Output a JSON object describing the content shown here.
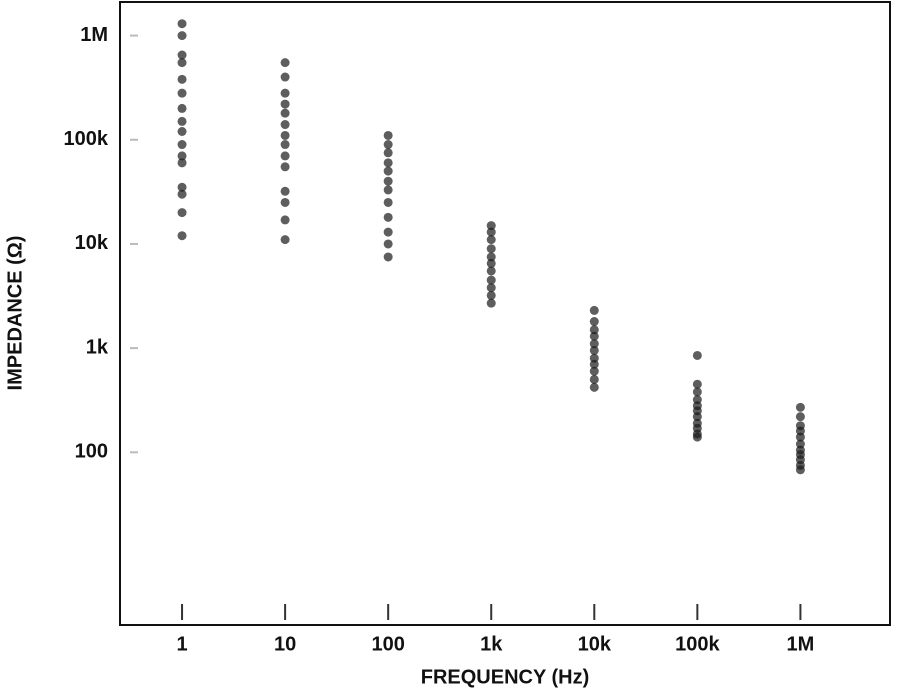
{
  "chart_data": {
    "type": "scatter",
    "x_label": "FREQUENCY (Hz)",
    "y_label": "IMPEDANCE (Ω)",
    "xscale": "log",
    "yscale": "log",
    "color": "#1a1a1a",
    "xlim": [
      0.25,
      7400000
    ],
    "ylim": [
      2.2,
      2100000
    ],
    "xticks": [
      1,
      10,
      100,
      {
        "value": 1000,
        "label": "1k"
      },
      {
        "value": 10000,
        "label": "10k"
      },
      {
        "value": 100000,
        "label": "100k"
      },
      {
        "value": 1000000,
        "label": "1M"
      }
    ],
    "yticks": [
      100,
      {
        "value": 1000,
        "label": "1k"
      },
      {
        "value": 10000,
        "label": "10k"
      },
      {
        "value": 100000,
        "label": "100k"
      },
      {
        "value": 1000000,
        "label": "1M"
      }
    ],
    "x": [
      1,
      1,
      1,
      1,
      1,
      1,
      1,
      1,
      1,
      1,
      1,
      1,
      1,
      1,
      1,
      1,
      10,
      10,
      10,
      10,
      10,
      10,
      10,
      10,
      10,
      10,
      10,
      10,
      10,
      10,
      100,
      100,
      100,
      100,
      100,
      100,
      100,
      100,
      100,
      100,
      100,
      100,
      1000,
      1000,
      1000,
      1000,
      1000,
      1000,
      1000,
      1000,
      1000,
      1000,
      1000,
      10000,
      10000,
      10000,
      10000,
      10000,
      10000,
      10000,
      10000,
      10000,
      10000,
      10000,
      100000,
      100000,
      100000,
      100000,
      100000,
      100000,
      100000,
      100000,
      100000,
      100000,
      100000,
      1000000,
      1000000,
      1000000,
      1000000,
      1000000,
      1000000,
      1000000,
      1000000,
      1000000,
      1000000,
      1000000
    ],
    "values": [
      1300000,
      1000000,
      650000,
      550000,
      380000,
      280000,
      200000,
      150000,
      120000,
      90000,
      70000,
      60000,
      35000,
      30000,
      20000,
      12000,
      550000,
      400000,
      280000,
      220000,
      180000,
      140000,
      110000,
      90000,
      70000,
      55000,
      32000,
      25000,
      17000,
      11000,
      110000,
      90000,
      75000,
      60000,
      50000,
      40000,
      33000,
      25000,
      18000,
      13000,
      10000,
      7500,
      15000,
      13000,
      11000,
      9000,
      7500,
      6500,
      5500,
      4500,
      3800,
      3200,
      2700,
      2300,
      1800,
      1500,
      1300,
      1100,
      950,
      800,
      700,
      600,
      500,
      420,
      850,
      450,
      380,
      320,
      280,
      250,
      220,
      190,
      170,
      150,
      140,
      270,
      220,
      180,
      160,
      140,
      120,
      105,
      95,
      85,
      75,
      68
    ]
  }
}
